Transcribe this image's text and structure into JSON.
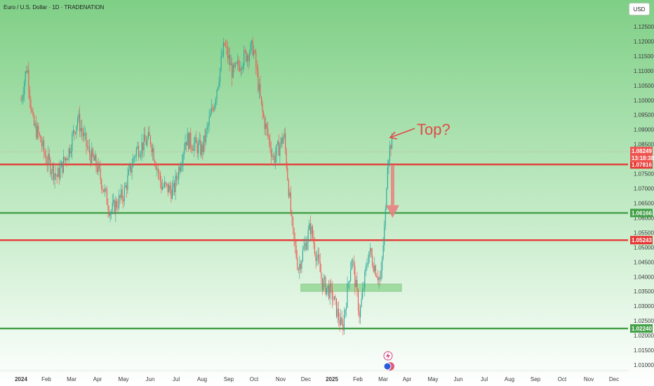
{
  "header": {
    "title": "Euro / U.S. Dollar · 1D · TRADENATION",
    "currency_button": "USD"
  },
  "colors": {
    "up_candle": "#26a69a",
    "down_candle": "#ef5350",
    "resistance_line": "#e53935",
    "support_line": "#43a047",
    "annotation": "#e14a4a"
  },
  "chart_data": {
    "type": "candlestick",
    "title": "Euro / U.S. Dollar · 1D · TRADENATION",
    "ylim": [
      1.005,
      1.128
    ],
    "y_ticks": [
      "1.12500",
      "1.12000",
      "1.11500",
      "1.11000",
      "1.10500",
      "1.10000",
      "1.09500",
      "1.09000",
      "1.08500",
      "1.07500",
      "1.07000",
      "1.06500",
      "1.06000",
      "1.05500",
      "1.05000",
      "1.04500",
      "1.04000",
      "1.03500",
      "1.03000",
      "1.02500",
      "1.02000",
      "1.01500",
      "1.01000"
    ],
    "x_labels": [
      "2024",
      "Feb",
      "Mar",
      "Apr",
      "May",
      "Jun",
      "Jul",
      "Aug",
      "Sep",
      "Oct",
      "Nov",
      "Dec",
      "2025",
      "Feb",
      "Mar",
      "Apr",
      "May",
      "Jun",
      "Jul",
      "Aug",
      "Sep",
      "Oct",
      "Nov",
      "Dec"
    ],
    "price_path": [
      [
        "2024-01-01",
        1.1
      ],
      [
        "2024-01-08",
        1.112
      ],
      [
        "2024-01-15",
        1.092
      ],
      [
        "2024-01-22",
        1.088
      ],
      [
        "2024-02-01",
        1.08
      ],
      [
        "2024-02-14",
        1.074
      ],
      [
        "2024-02-28",
        1.083
      ],
      [
        "2024-03-08",
        1.094
      ],
      [
        "2024-03-20",
        1.083
      ],
      [
        "2024-04-01",
        1.077
      ],
      [
        "2024-04-16",
        1.062
      ],
      [
        "2024-05-01",
        1.068
      ],
      [
        "2024-05-15",
        1.083
      ],
      [
        "2024-06-01",
        1.087
      ],
      [
        "2024-06-14",
        1.071
      ],
      [
        "2024-06-28",
        1.069
      ],
      [
        "2024-07-12",
        1.087
      ],
      [
        "2024-07-31",
        1.083
      ],
      [
        "2024-08-15",
        1.1
      ],
      [
        "2024-08-26",
        1.119
      ],
      [
        "2024-09-06",
        1.109
      ],
      [
        "2024-09-20",
        1.115
      ],
      [
        "2024-09-30",
        1.118
      ],
      [
        "2024-10-10",
        1.096
      ],
      [
        "2024-10-23",
        1.08
      ],
      [
        "2024-11-05",
        1.088
      ],
      [
        "2024-11-15",
        1.055
      ],
      [
        "2024-11-22",
        1.043
      ],
      [
        "2024-12-06",
        1.057
      ],
      [
        "2024-12-20",
        1.038
      ],
      [
        "2025-01-01",
        1.034
      ],
      [
        "2025-01-13",
        1.022
      ],
      [
        "2025-01-24",
        1.047
      ],
      [
        "2025-02-03",
        1.027
      ],
      [
        "2025-02-14",
        1.049
      ],
      [
        "2025-02-28",
        1.038
      ],
      [
        "2025-03-04",
        1.062
      ],
      [
        "2025-03-06",
        1.079
      ],
      [
        "2025-03-11",
        1.086
      ],
      [
        "2025-03-13",
        1.083
      ]
    ],
    "levels": [
      {
        "price": 1.07816,
        "label": "1.07816",
        "kind": "resistance"
      },
      {
        "price": 1.06166,
        "label": "1.06166",
        "kind": "support"
      },
      {
        "price": 1.05243,
        "label": "1.05243",
        "kind": "resistance"
      },
      {
        "price": 1.0224,
        "label": "1.02240",
        "kind": "support"
      }
    ],
    "last_price": {
      "label": "1.08249",
      "countdown": "13:18:38",
      "price": 1.08249
    },
    "support_zone": {
      "from": "2024-11-25",
      "to": "2025-03-24",
      "low": 1.0355,
      "high": 1.0365
    },
    "annotation": {
      "text": "Top?"
    },
    "projection_arrow": {
      "from": 1.078,
      "to": 1.06
    }
  }
}
